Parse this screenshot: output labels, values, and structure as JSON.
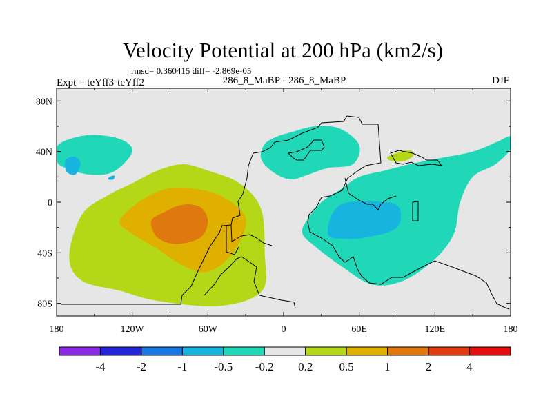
{
  "chart_data": {
    "type": "contour-map",
    "title": "Velocity Potential at 200 hPa (km2/s)",
    "stats_text": "rmsd= 0.360415 diff= -2.869e-05",
    "left_label": "Expt = teYff3-teYff2",
    "center_label": "286_8_MaBP - 286_8_MaBP",
    "right_label": "DJF",
    "x_axis": {
      "range": [
        -180,
        180
      ],
      "ticks": [
        {
          "value": -180,
          "label": "180"
        },
        {
          "value": -120,
          "label": "120W"
        },
        {
          "value": -60,
          "label": "60W"
        },
        {
          "value": 0,
          "label": "0"
        },
        {
          "value": 60,
          "label": "60E"
        },
        {
          "value": 120,
          "label": "120E"
        },
        {
          "value": 180,
          "label": "180"
        }
      ]
    },
    "y_axis": {
      "range": [
        -90,
        90
      ],
      "ticks": [
        {
          "value": 80,
          "label": "80N"
        },
        {
          "value": 40,
          "label": "40N"
        },
        {
          "value": 0,
          "label": "0"
        },
        {
          "value": -40,
          "label": "40S"
        },
        {
          "value": -80,
          "label": "80S"
        }
      ]
    },
    "colorbar": {
      "colors": [
        "#8b2be2",
        "#2424d8",
        "#1a78e0",
        "#18b4e0",
        "#20d8b8",
        "#e6e6e6",
        "#b4d818",
        "#e0b000",
        "#e07810",
        "#e03c10",
        "#e01010"
      ],
      "labels": [
        "-4",
        "-2",
        "-1",
        "-0.5",
        "-0.2",
        "0.2",
        "0.5",
        "1",
        "2",
        "4"
      ]
    },
    "regions": [
      {
        "name": "north-pacific-negative",
        "level": "-0.5 to -0.2",
        "color": "#20d8b8",
        "points": [
          [
            -178,
            46
          ],
          [
            -155,
            53
          ],
          [
            -130,
            50
          ],
          [
            -120,
            40
          ],
          [
            -135,
            24
          ],
          [
            -155,
            22
          ],
          [
            -175,
            28
          ],
          [
            -180,
            34
          ]
        ]
      },
      {
        "name": "north-pacific-core",
        "level": "-1 to -0.5",
        "color": "#18b4e0",
        "points": [
          [
            -173,
            33
          ],
          [
            -166,
            36
          ],
          [
            -161,
            31
          ],
          [
            -165,
            22
          ],
          [
            -172,
            24
          ]
        ]
      },
      {
        "name": "north-pacific-spot",
        "level": "-1 to -0.5",
        "color": "#18b4e0",
        "points": [
          [
            -138,
            20
          ],
          [
            -134,
            21
          ],
          [
            -135,
            18
          ],
          [
            -139,
            18
          ]
        ]
      },
      {
        "name": "south-america-positive",
        "level": "0.2 to 0.5",
        "color": "#b4d818",
        "points": [
          [
            -170,
            -43
          ],
          [
            -160,
            -10
          ],
          [
            -140,
            5
          ],
          [
            -120,
            15
          ],
          [
            -100,
            25
          ],
          [
            -80,
            30
          ],
          [
            -60,
            25
          ],
          [
            -35,
            15
          ],
          [
            -18,
            -5
          ],
          [
            -15,
            -40
          ],
          [
            -17,
            -70
          ],
          [
            -50,
            -82
          ],
          [
            -100,
            -78
          ],
          [
            -130,
            -70
          ],
          [
            -160,
            -62
          ]
        ]
      },
      {
        "name": "south-america-mid",
        "level": "0.5 to 1",
        "color": "#e0b000",
        "points": [
          [
            -130,
            -15
          ],
          [
            -115,
            0
          ],
          [
            -95,
            10
          ],
          [
            -75,
            11
          ],
          [
            -50,
            5
          ],
          [
            -30,
            -13
          ],
          [
            -40,
            -40
          ],
          [
            -60,
            -55
          ],
          [
            -80,
            -50
          ],
          [
            -100,
            -37
          ],
          [
            -120,
            -25
          ]
        ]
      },
      {
        "name": "south-america-core",
        "level": "1 to 2",
        "color": "#e07810",
        "points": [
          [
            -105,
            -15
          ],
          [
            -95,
            -8
          ],
          [
            -80,
            -2
          ],
          [
            -66,
            -4
          ],
          [
            -60,
            -15
          ],
          [
            -66,
            -28
          ],
          [
            -85,
            -33
          ],
          [
            -100,
            -28
          ]
        ]
      },
      {
        "name": "africa-europe-negative",
        "level": "-0.5 to -0.2",
        "color": "#20d8b8",
        "points": [
          [
            -15,
            46
          ],
          [
            -5,
            52
          ],
          [
            5,
            55
          ],
          [
            25,
            60
          ],
          [
            45,
            58
          ],
          [
            60,
            45
          ],
          [
            55,
            30
          ],
          [
            35,
            27
          ],
          [
            20,
            22
          ],
          [
            5,
            18
          ],
          [
            -10,
            25
          ],
          [
            -18,
            35
          ]
        ]
      },
      {
        "name": "asia-small-positive",
        "level": "0.2 to 0.5",
        "color": "#b4d818",
        "points": [
          [
            82,
            35
          ],
          [
            90,
            39
          ],
          [
            100,
            41
          ],
          [
            103,
            37
          ],
          [
            97,
            33
          ],
          [
            88,
            32
          ]
        ]
      },
      {
        "name": "indian-ocean-negative",
        "level": "-0.5 to -0.2",
        "color": "#20d8b8",
        "points": [
          [
            18,
            -15
          ],
          [
            30,
            0
          ],
          [
            45,
            10
          ],
          [
            60,
            20
          ],
          [
            80,
            25
          ],
          [
            100,
            30
          ],
          [
            125,
            35
          ],
          [
            150,
            40
          ],
          [
            170,
            48
          ],
          [
            180,
            52
          ],
          [
            180,
            42
          ],
          [
            168,
            30
          ],
          [
            150,
            20
          ],
          [
            140,
            0
          ],
          [
            135,
            -25
          ],
          [
            120,
            -45
          ],
          [
            95,
            -62
          ],
          [
            70,
            -65
          ],
          [
            45,
            -50
          ],
          [
            25,
            -35
          ],
          [
            15,
            -25
          ]
        ]
      },
      {
        "name": "indian-ocean-core",
        "level": "-1 to -0.5",
        "color": "#18b4e0",
        "points": [
          [
            35,
            -25
          ],
          [
            45,
            -2
          ],
          [
            80,
            0
          ],
          [
            92,
            -5
          ],
          [
            90,
            -20
          ],
          [
            70,
            -27
          ],
          [
            50,
            -29
          ]
        ]
      }
    ]
  }
}
